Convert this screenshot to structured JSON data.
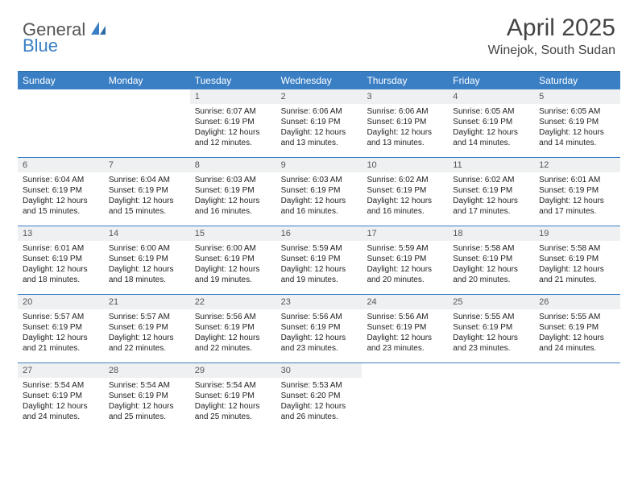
{
  "logo": {
    "part1": "General",
    "part2": "Blue"
  },
  "title": "April 2025",
  "location": "Winejok, South Sudan",
  "header_bg": "#3a7fc4",
  "dow": [
    "Sunday",
    "Monday",
    "Tuesday",
    "Wednesday",
    "Thursday",
    "Friday",
    "Saturday"
  ],
  "weeks": [
    [
      {
        "empty": true
      },
      {
        "empty": true
      },
      {
        "n": "1",
        "sr": "Sunrise: 6:07 AM",
        "ss": "Sunset: 6:19 PM",
        "dl": "Daylight: 12 hours and 12 minutes."
      },
      {
        "n": "2",
        "sr": "Sunrise: 6:06 AM",
        "ss": "Sunset: 6:19 PM",
        "dl": "Daylight: 12 hours and 13 minutes."
      },
      {
        "n": "3",
        "sr": "Sunrise: 6:06 AM",
        "ss": "Sunset: 6:19 PM",
        "dl": "Daylight: 12 hours and 13 minutes."
      },
      {
        "n": "4",
        "sr": "Sunrise: 6:05 AM",
        "ss": "Sunset: 6:19 PM",
        "dl": "Daylight: 12 hours and 14 minutes."
      },
      {
        "n": "5",
        "sr": "Sunrise: 6:05 AM",
        "ss": "Sunset: 6:19 PM",
        "dl": "Daylight: 12 hours and 14 minutes."
      }
    ],
    [
      {
        "n": "6",
        "sr": "Sunrise: 6:04 AM",
        "ss": "Sunset: 6:19 PM",
        "dl": "Daylight: 12 hours and 15 minutes."
      },
      {
        "n": "7",
        "sr": "Sunrise: 6:04 AM",
        "ss": "Sunset: 6:19 PM",
        "dl": "Daylight: 12 hours and 15 minutes."
      },
      {
        "n": "8",
        "sr": "Sunrise: 6:03 AM",
        "ss": "Sunset: 6:19 PM",
        "dl": "Daylight: 12 hours and 16 minutes."
      },
      {
        "n": "9",
        "sr": "Sunrise: 6:03 AM",
        "ss": "Sunset: 6:19 PM",
        "dl": "Daylight: 12 hours and 16 minutes."
      },
      {
        "n": "10",
        "sr": "Sunrise: 6:02 AM",
        "ss": "Sunset: 6:19 PM",
        "dl": "Daylight: 12 hours and 16 minutes."
      },
      {
        "n": "11",
        "sr": "Sunrise: 6:02 AM",
        "ss": "Sunset: 6:19 PM",
        "dl": "Daylight: 12 hours and 17 minutes."
      },
      {
        "n": "12",
        "sr": "Sunrise: 6:01 AM",
        "ss": "Sunset: 6:19 PM",
        "dl": "Daylight: 12 hours and 17 minutes."
      }
    ],
    [
      {
        "n": "13",
        "sr": "Sunrise: 6:01 AM",
        "ss": "Sunset: 6:19 PM",
        "dl": "Daylight: 12 hours and 18 minutes."
      },
      {
        "n": "14",
        "sr": "Sunrise: 6:00 AM",
        "ss": "Sunset: 6:19 PM",
        "dl": "Daylight: 12 hours and 18 minutes."
      },
      {
        "n": "15",
        "sr": "Sunrise: 6:00 AM",
        "ss": "Sunset: 6:19 PM",
        "dl": "Daylight: 12 hours and 19 minutes."
      },
      {
        "n": "16",
        "sr": "Sunrise: 5:59 AM",
        "ss": "Sunset: 6:19 PM",
        "dl": "Daylight: 12 hours and 19 minutes."
      },
      {
        "n": "17",
        "sr": "Sunrise: 5:59 AM",
        "ss": "Sunset: 6:19 PM",
        "dl": "Daylight: 12 hours and 20 minutes."
      },
      {
        "n": "18",
        "sr": "Sunrise: 5:58 AM",
        "ss": "Sunset: 6:19 PM",
        "dl": "Daylight: 12 hours and 20 minutes."
      },
      {
        "n": "19",
        "sr": "Sunrise: 5:58 AM",
        "ss": "Sunset: 6:19 PM",
        "dl": "Daylight: 12 hours and 21 minutes."
      }
    ],
    [
      {
        "n": "20",
        "sr": "Sunrise: 5:57 AM",
        "ss": "Sunset: 6:19 PM",
        "dl": "Daylight: 12 hours and 21 minutes."
      },
      {
        "n": "21",
        "sr": "Sunrise: 5:57 AM",
        "ss": "Sunset: 6:19 PM",
        "dl": "Daylight: 12 hours and 22 minutes."
      },
      {
        "n": "22",
        "sr": "Sunrise: 5:56 AM",
        "ss": "Sunset: 6:19 PM",
        "dl": "Daylight: 12 hours and 22 minutes."
      },
      {
        "n": "23",
        "sr": "Sunrise: 5:56 AM",
        "ss": "Sunset: 6:19 PM",
        "dl": "Daylight: 12 hours and 23 minutes."
      },
      {
        "n": "24",
        "sr": "Sunrise: 5:56 AM",
        "ss": "Sunset: 6:19 PM",
        "dl": "Daylight: 12 hours and 23 minutes."
      },
      {
        "n": "25",
        "sr": "Sunrise: 5:55 AM",
        "ss": "Sunset: 6:19 PM",
        "dl": "Daylight: 12 hours and 23 minutes."
      },
      {
        "n": "26",
        "sr": "Sunrise: 5:55 AM",
        "ss": "Sunset: 6:19 PM",
        "dl": "Daylight: 12 hours and 24 minutes."
      }
    ],
    [
      {
        "n": "27",
        "sr": "Sunrise: 5:54 AM",
        "ss": "Sunset: 6:19 PM",
        "dl": "Daylight: 12 hours and 24 minutes."
      },
      {
        "n": "28",
        "sr": "Sunrise: 5:54 AM",
        "ss": "Sunset: 6:19 PM",
        "dl": "Daylight: 12 hours and 25 minutes."
      },
      {
        "n": "29",
        "sr": "Sunrise: 5:54 AM",
        "ss": "Sunset: 6:19 PM",
        "dl": "Daylight: 12 hours and 25 minutes."
      },
      {
        "n": "30",
        "sr": "Sunrise: 5:53 AM",
        "ss": "Sunset: 6:20 PM",
        "dl": "Daylight: 12 hours and 26 minutes."
      },
      {
        "empty": true
      },
      {
        "empty": true
      },
      {
        "empty": true
      }
    ]
  ]
}
